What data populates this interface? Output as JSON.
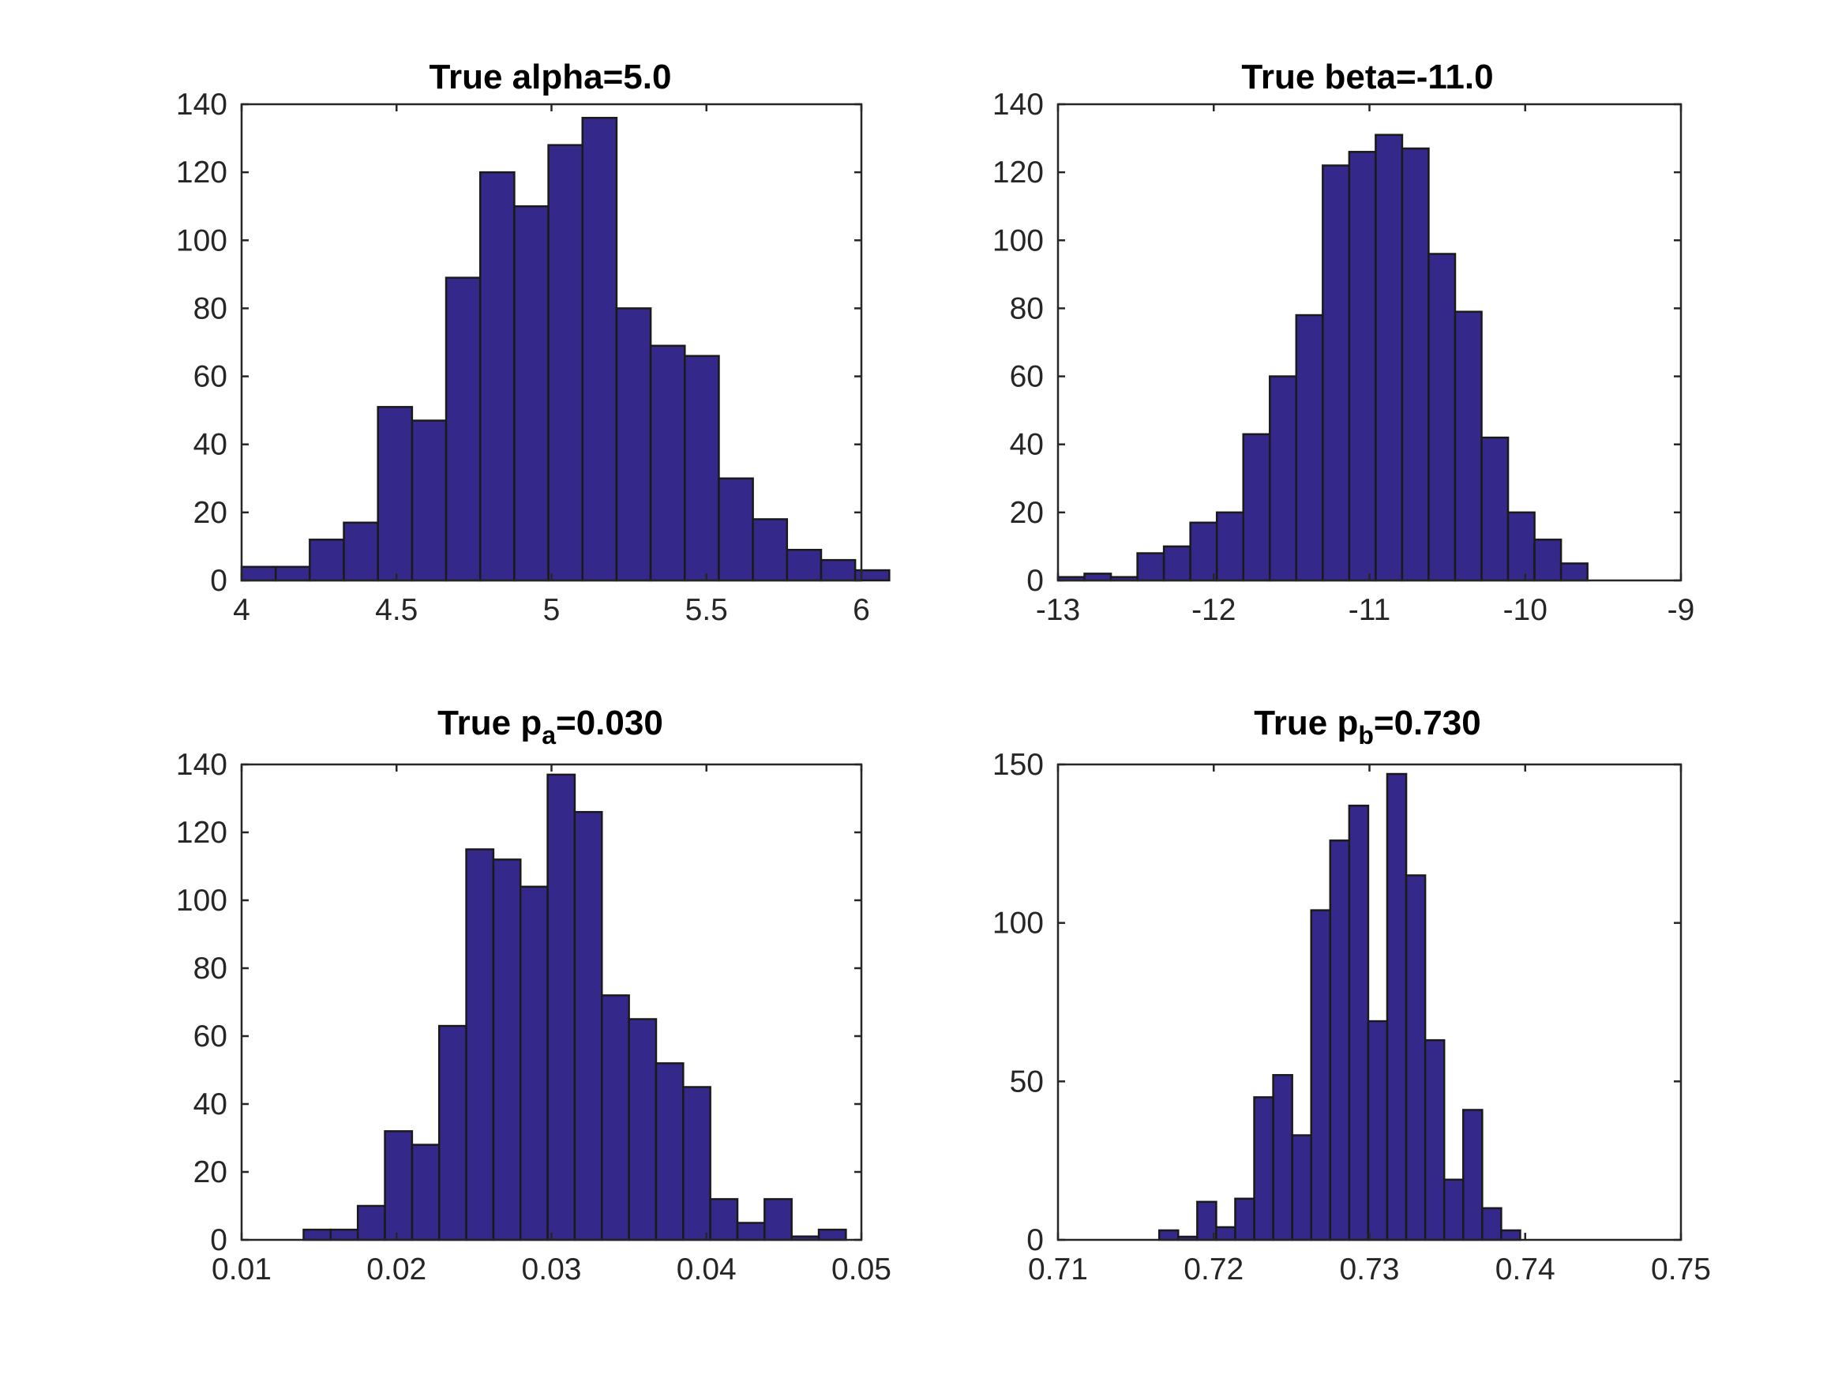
{
  "chart_data": [
    {
      "type": "bar",
      "title": "True alpha=5.0",
      "xlim": [
        4,
        6
      ],
      "ylim": [
        0,
        140
      ],
      "xticks": [
        "4",
        "4.5",
        "5",
        "5.5",
        "6"
      ],
      "yticks": [
        "0",
        "20",
        "40",
        "60",
        "80",
        "100",
        "120",
        "140"
      ],
      "bin_start": 4.0,
      "bin_width": 0.11,
      "values": [
        4,
        4,
        12,
        17,
        51,
        47,
        89,
        120,
        110,
        128,
        136,
        80,
        69,
        66,
        30,
        18,
        9,
        6,
        3
      ]
    },
    {
      "type": "bar",
      "title": "True beta=-11.0",
      "xlim": [
        -13,
        -9
      ],
      "ylim": [
        0,
        140
      ],
      "xticks": [
        "-13",
        "-12",
        "-11",
        "-10",
        "-9"
      ],
      "yticks": [
        "0",
        "20",
        "40",
        "60",
        "80",
        "100",
        "120",
        "140"
      ],
      "bin_start": -13.0,
      "bin_width": 0.17,
      "values": [
        1,
        2,
        1,
        8,
        10,
        17,
        20,
        43,
        60,
        78,
        122,
        126,
        131,
        127,
        96,
        79,
        42,
        20,
        12,
        5
      ]
    },
    {
      "type": "bar",
      "title_main": "True p",
      "title_sub": "a",
      "title_rest": "=0.030",
      "xlim": [
        0.01,
        0.05
      ],
      "ylim": [
        0,
        140
      ],
      "xticks": [
        "0.01",
        "0.02",
        "0.03",
        "0.04",
        "0.05"
      ],
      "yticks": [
        "0",
        "20",
        "40",
        "60",
        "80",
        "100",
        "120",
        "140"
      ],
      "bin_start": 0.014,
      "bin_width": 0.00175,
      "values": [
        3,
        3,
        10,
        32,
        28,
        63,
        115,
        112,
        104,
        137,
        126,
        72,
        65,
        52,
        45,
        12,
        5,
        12,
        1,
        3
      ]
    },
    {
      "type": "bar",
      "title_main": "True p",
      "title_sub": "b",
      "title_rest": "=0.730",
      "xlim": [
        0.71,
        0.75
      ],
      "ylim": [
        0,
        150
      ],
      "xticks": [
        "0.71",
        "0.72",
        "0.73",
        "0.74",
        "0.75"
      ],
      "yticks": [
        "0",
        "50",
        "100",
        "150"
      ],
      "bin_start": 0.7165,
      "bin_width": 0.00122,
      "values": [
        3,
        1,
        12,
        4,
        13,
        45,
        52,
        33,
        104,
        126,
        137,
        69,
        147,
        115,
        63,
        19,
        41,
        10,
        3
      ]
    }
  ]
}
